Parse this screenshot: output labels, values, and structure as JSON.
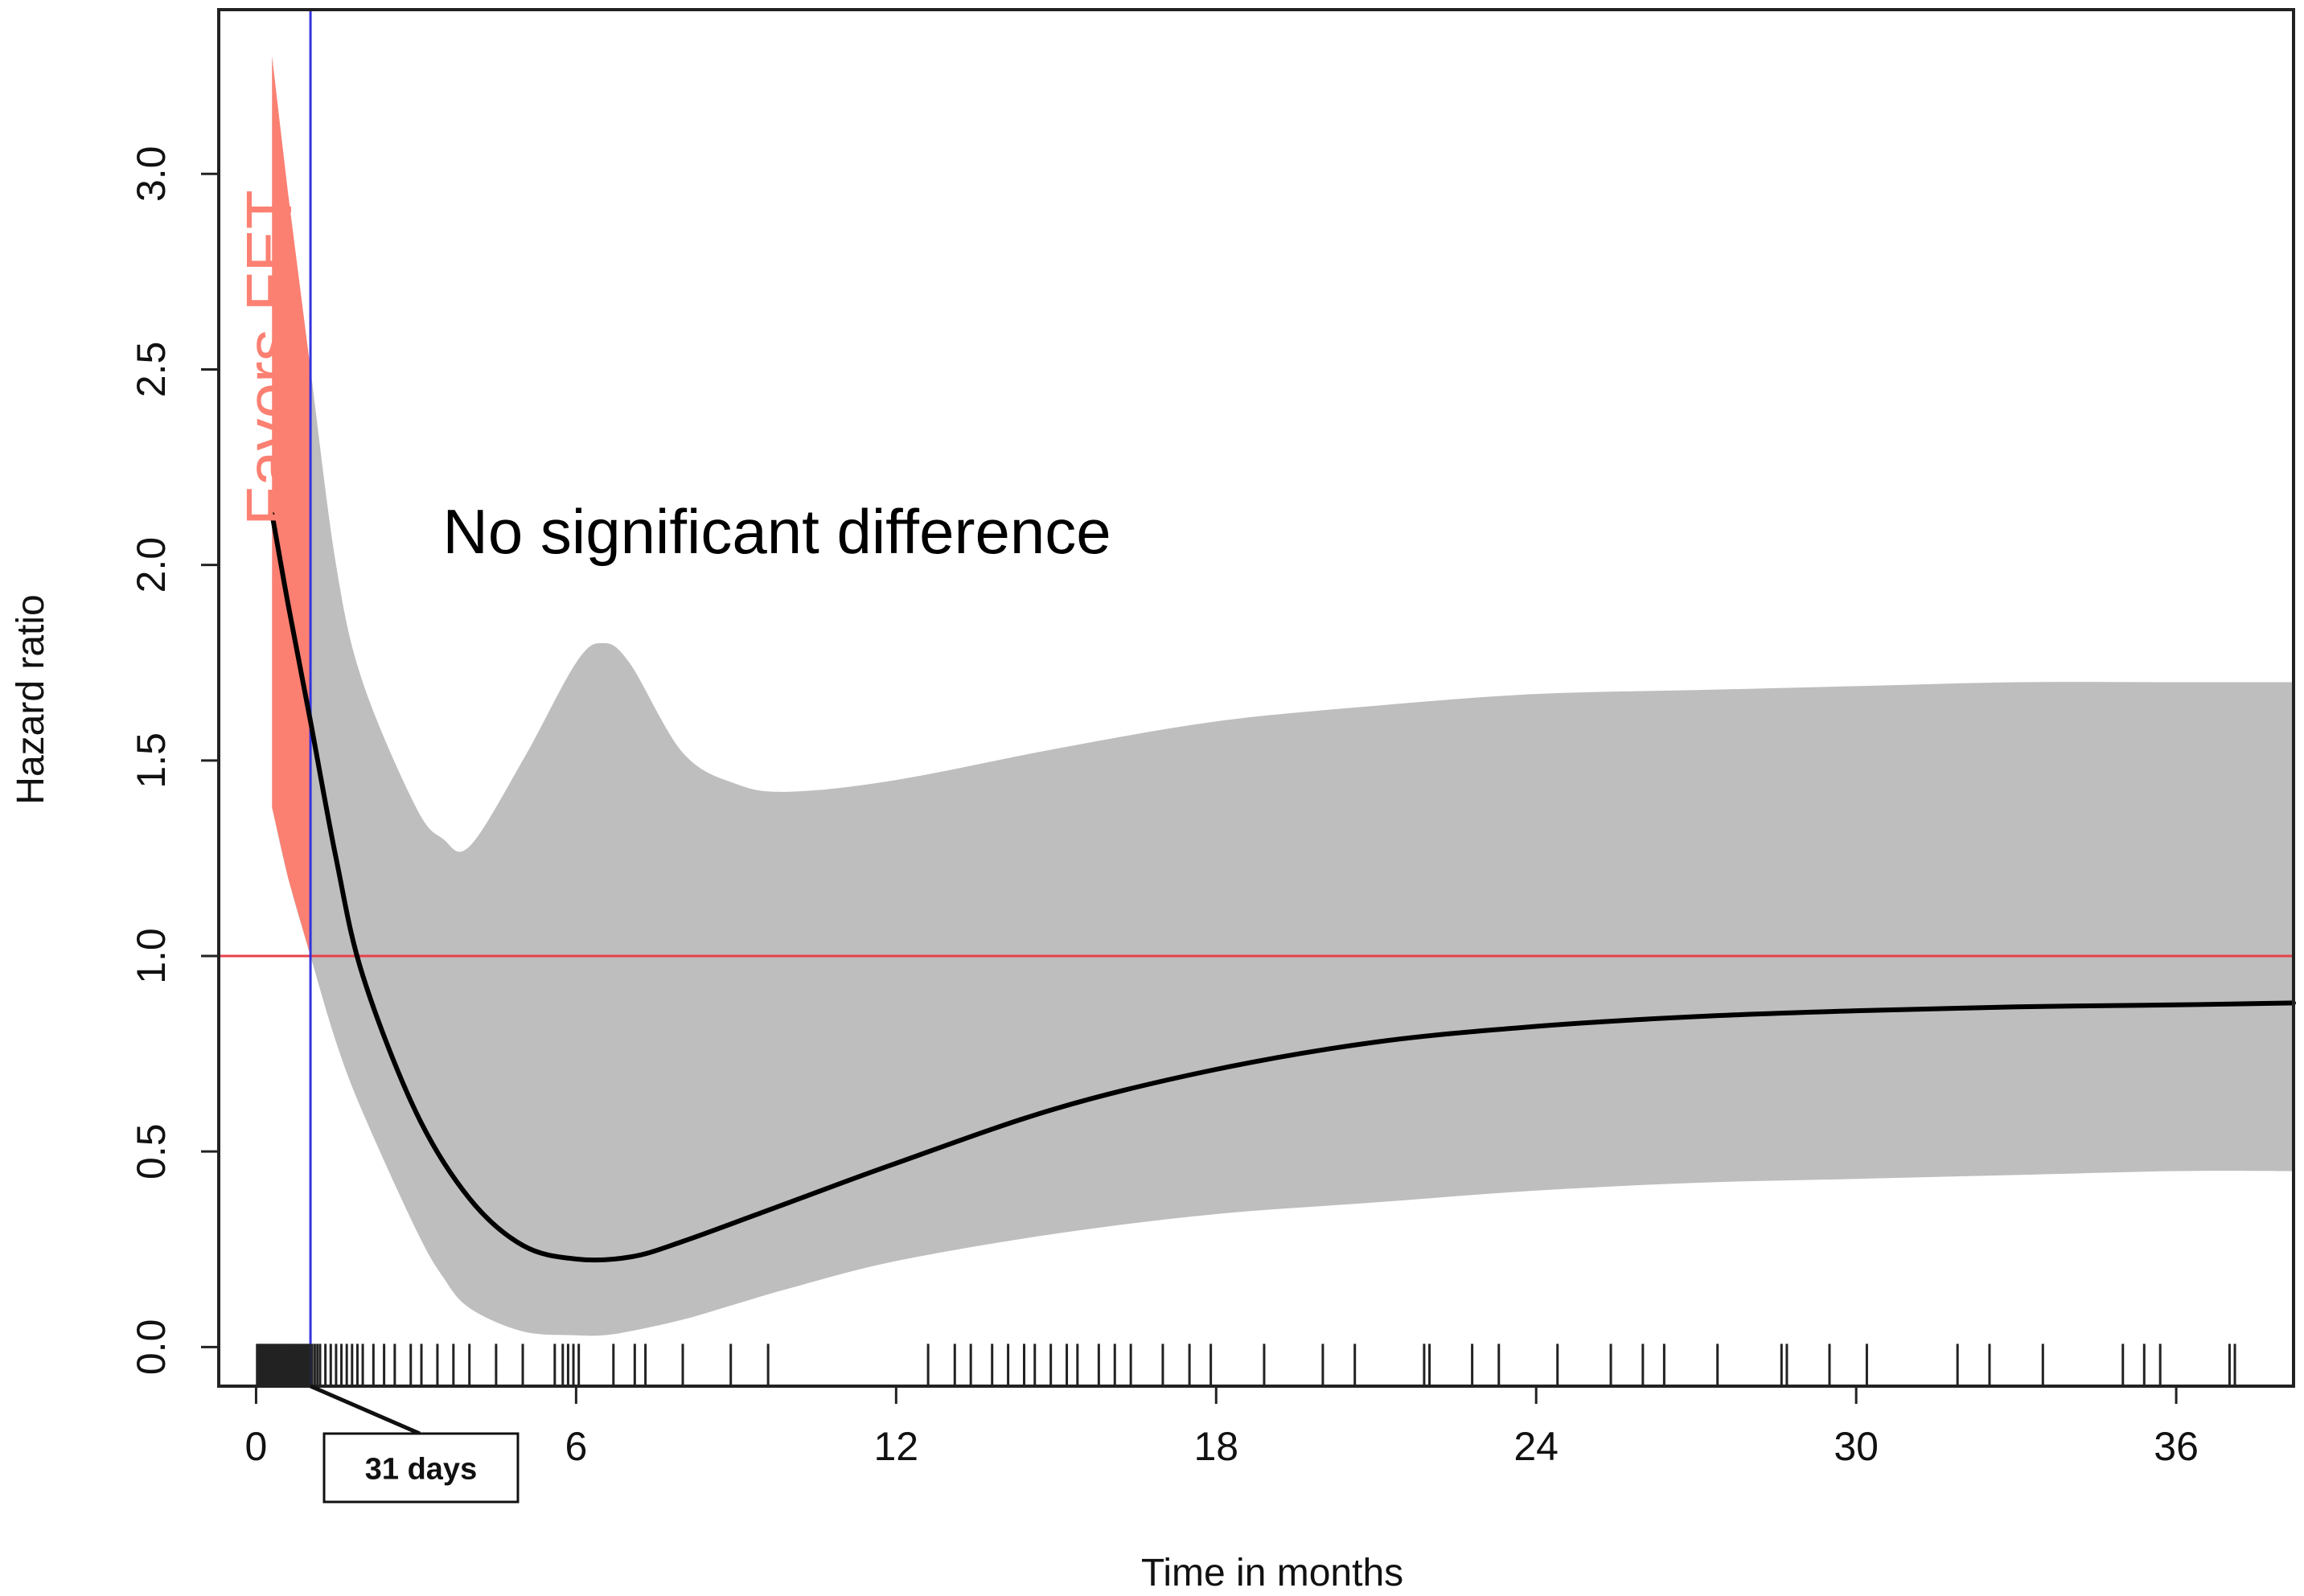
{
  "chart_data": {
    "type": "line",
    "title": "",
    "xlabel": "Time in months",
    "ylabel": "Hazard ratio",
    "xlim": [
      -0.7,
      38.2
    ],
    "ylim": [
      -0.1,
      3.42
    ],
    "x_ticks": [
      0,
      6,
      12,
      18,
      24,
      30,
      36
    ],
    "x_tick_labels": [
      "0",
      "6",
      "12",
      "18",
      "24",
      "30",
      "36"
    ],
    "y_ticks": [
      0.0,
      0.5,
      1.0,
      1.5,
      2.0,
      2.5,
      3.0
    ],
    "y_tick_labels": [
      "0.0",
      "0.5",
      "1.0",
      "1.5",
      "2.0",
      "2.5",
      "3.0"
    ],
    "reference_line": {
      "y": 1.0,
      "color": "#e8424b"
    },
    "cutpoint_line": {
      "x": 1.02,
      "color": "#3333dd",
      "label": "31 days"
    },
    "series": [
      {
        "name": "Hazard ratio",
        "color": "#000000",
        "x": [
          0.3,
          0.6,
          1.02,
          1.5,
          2,
          3,
          4,
          5,
          6,
          7,
          8,
          10,
          12,
          15,
          18,
          21,
          24,
          27,
          30,
          33,
          36,
          38.2
        ],
        "y": [
          2.13,
          1.9,
          1.6,
          1.25,
          0.95,
          0.6,
          0.38,
          0.26,
          0.225,
          0.23,
          0.27,
          0.37,
          0.47,
          0.61,
          0.71,
          0.78,
          0.82,
          0.845,
          0.86,
          0.87,
          0.875,
          0.88
        ]
      }
    ],
    "confidence_band": {
      "color": "#bebebe",
      "x": [
        0.3,
        0.6,
        1.02,
        1.5,
        2,
        3,
        3.5,
        4,
        5,
        6,
        6.5,
        7,
        8,
        9,
        10,
        12,
        15,
        18,
        21,
        24,
        27,
        30,
        33,
        36,
        38.2
      ],
      "upper": [
        3.3,
        2.95,
        2.5,
        2.0,
        1.7,
        1.38,
        1.3,
        1.28,
        1.5,
        1.75,
        1.8,
        1.75,
        1.52,
        1.44,
        1.42,
        1.45,
        1.53,
        1.6,
        1.64,
        1.67,
        1.68,
        1.69,
        1.7,
        1.7,
        1.7
      ],
      "lower": [
        1.38,
        1.2,
        1.0,
        0.78,
        0.6,
        0.3,
        0.18,
        0.1,
        0.04,
        0.03,
        0.03,
        0.04,
        0.07,
        0.11,
        0.15,
        0.22,
        0.29,
        0.34,
        0.37,
        0.4,
        0.42,
        0.43,
        0.44,
        0.45,
        0.45
      ]
    },
    "favors_region": {
      "label": "Favors FET",
      "color": "#fb8072",
      "x": [
        0.3,
        0.6,
        1.02
      ],
      "upper": [
        3.3,
        2.95,
        2.5
      ],
      "lower": [
        1.38,
        1.2,
        1.0
      ]
    },
    "rug_events": [
      0.02,
      0.05,
      0.08,
      0.1,
      0.13,
      0.16,
      0.2,
      0.23,
      0.26,
      0.3,
      0.33,
      0.36,
      0.4,
      0.43,
      0.46,
      0.5,
      0.53,
      0.56,
      0.6,
      0.63,
      0.66,
      0.7,
      0.73,
      0.76,
      0.8,
      0.83,
      0.86,
      0.9,
      0.93,
      0.96,
      1.0,
      1.05,
      1.1,
      1.15,
      1.2,
      1.3,
      1.4,
      1.5,
      1.6,
      1.7,
      1.8,
      1.9,
      2.0,
      2.2,
      2.4,
      2.6,
      2.9,
      3.1,
      3.4,
      3.7,
      4.0,
      4.5,
      5.0,
      5.6,
      5.75,
      5.85,
      5.95,
      6.05,
      6.7,
      7.1,
      7.3,
      8.0,
      8.9,
      9.6,
      12.6,
      13.1,
      13.4,
      13.8,
      14.1,
      14.4,
      14.6,
      14.9,
      15.2,
      15.4,
      15.8,
      16.1,
      16.4,
      17.0,
      17.5,
      17.9,
      18.9,
      20.0,
      20.6,
      21.9,
      22.0,
      22.8,
      23.3,
      24.4,
      25.4,
      26.0,
      26.4,
      27.4,
      28.6,
      28.7,
      29.5,
      30.2,
      31.9,
      32.5,
      33.5,
      35.0,
      35.4,
      35.7,
      37.0,
      37.1
    ],
    "annotations": {
      "center_text": "No significant difference",
      "center_text_at": [
        3.5,
        2.03
      ]
    }
  }
}
